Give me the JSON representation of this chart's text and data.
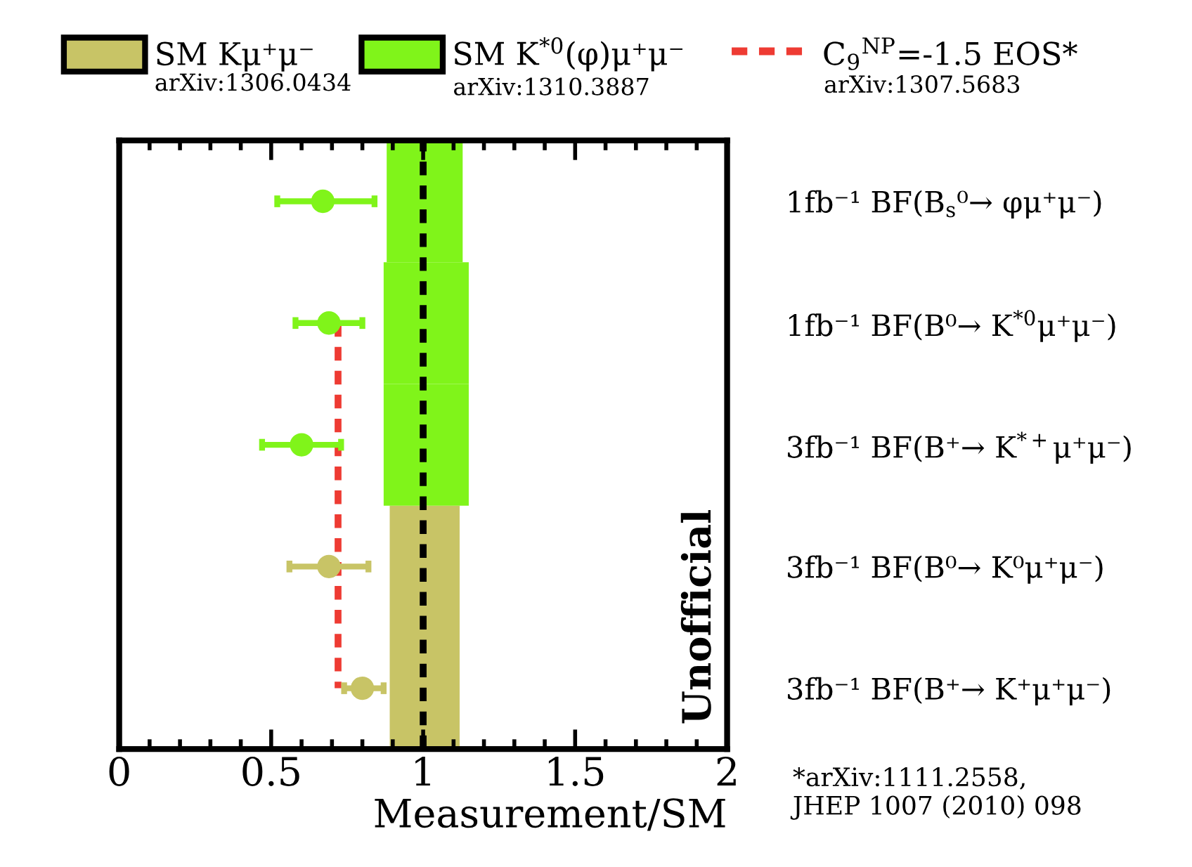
{
  "chart_data": {
    "type": "bar",
    "orientation": "horizontal",
    "xlabel": "Measurement/SM",
    "categories": [
      "1fb⁻¹ BF(B$_{s}$⁰→ φμ⁺μ⁻)",
      "1fb⁻¹ BF(B⁰→ K$^{*0}$μ⁺μ⁻)",
      "3fb⁻¹ BF(B⁺→ K$^{*+}$μ⁺μ⁻)",
      "3fb⁻¹ BF(B⁰→ K⁰μ⁺μ⁻)",
      "3fb⁻¹ BF(B⁺→ K⁺μ⁺μ⁻)"
    ],
    "series": [
      {
        "name": "SM Kμ⁺μ⁻",
        "color": "#c8c466",
        "base": [
          null,
          null,
          null,
          0.89,
          0.89
        ],
        "values": [
          null,
          null,
          null,
          0.23,
          0.23
        ]
      },
      {
        "name": "SM K$^{*0}$(φ)μ⁺μ⁻",
        "color": "#80f41a",
        "base": [
          0.88,
          0.87,
          0.87,
          null,
          null
        ],
        "values": [
          0.25,
          0.28,
          0.28,
          null,
          null
        ]
      },
      {
        "type": "scatter",
        "marker": "circle",
        "colors": [
          "#80f41a",
          "#80f41a",
          "#80f41a",
          "#c8c466",
          "#c8c466"
        ],
        "values": [
          0.67,
          0.69,
          0.6,
          0.69,
          0.8
        ],
        "errors": [
          [
            0.52,
            0.84
          ],
          [
            0.58,
            0.8
          ],
          [
            0.47,
            0.73
          ],
          [
            0.56,
            0.82
          ],
          [
            0.74,
            0.87
          ]
        ]
      },
      {
        "type": "line",
        "name": "C$_{9}$$^{NP}$=-1.5 EOS*",
        "color": "#ee3b33",
        "line_style": "dashed",
        "values": [
          null,
          0.72,
          0.72,
          0.72,
          0.72
        ]
      }
    ],
    "xlim": [
      0,
      2
    ],
    "xticks": [
      0,
      {
        "value": 0.1,
        "label": null
      },
      {
        "value": 0.2,
        "label": null
      },
      {
        "value": 0.3,
        "label": null
      },
      {
        "value": 0.4,
        "label": null
      },
      0.5,
      {
        "value": 0.6,
        "label": null
      },
      {
        "value": 0.7,
        "label": null
      },
      {
        "value": 0.8,
        "label": null
      },
      {
        "value": 0.9,
        "label": null
      },
      1,
      {
        "value": 1.1,
        "label": null
      },
      {
        "value": 1.2,
        "label": null
      },
      {
        "value": 1.3,
        "label": null
      },
      {
        "value": 1.4,
        "label": null
      },
      1.5,
      {
        "value": 1.6,
        "label": null
      },
      {
        "value": 1.7,
        "label": null
      },
      {
        "value": 1.8,
        "label": null
      },
      {
        "value": 1.9,
        "label": null
      },
      2
    ],
    "ref_lines": [
      {
        "axis": "x",
        "value": 1,
        "color": "#000000",
        "line_style": "dashed"
      }
    ],
    "legend": "top",
    "annotations": [
      "arXiv:1306.0434",
      "arXiv:1310.3887",
      "arXiv:1307.5683",
      "Unofficial",
      "*arXiv:1111.2558,\nJHEP 1007 (2010) 098"
    ]
  }
}
